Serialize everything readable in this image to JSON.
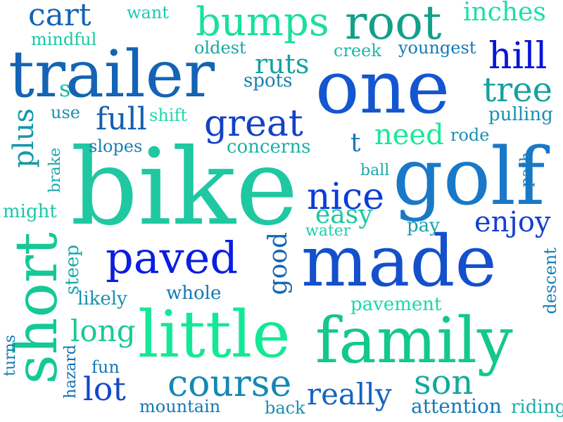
{
  "words": [
    {
      "text": "bike",
      "color": "#1FC8A0"
    },
    {
      "text": "golf",
      "color": "#1A78C8"
    },
    {
      "text": "one",
      "color": "#1456D0"
    },
    {
      "text": "made",
      "color": "#1450CC"
    },
    {
      "text": "trailer",
      "color": "#1463B4"
    },
    {
      "text": "family",
      "color": "#14C88A"
    },
    {
      "text": "little",
      "color": "#14E896"
    },
    {
      "text": "short",
      "color": "#16C896"
    },
    {
      "text": "root",
      "color": "#14A088"
    },
    {
      "text": "bumps",
      "color": "#1AE09A"
    },
    {
      "text": "paved",
      "color": "#0A1EE0"
    },
    {
      "text": "great",
      "color": "#1440C8"
    },
    {
      "text": "nice",
      "color": "#0C3CD8"
    },
    {
      "text": "course",
      "color": "#1488B4"
    },
    {
      "text": "hill",
      "color": "#0A14D8"
    },
    {
      "text": "tree",
      "color": "#16A0A0"
    },
    {
      "text": "cart",
      "color": "#1464B4"
    },
    {
      "text": "full",
      "color": "#1460B0"
    },
    {
      "text": "lot",
      "color": "#1448C8"
    },
    {
      "text": "son",
      "color": "#14A8A0"
    },
    {
      "text": "really",
      "color": "#1464C0"
    },
    {
      "text": "long",
      "color": "#1AC896"
    },
    {
      "text": "need",
      "color": "#1AE89C"
    },
    {
      "text": "easy",
      "color": "#1AC8A0"
    },
    {
      "text": "enjoy",
      "color": "#1440D0"
    },
    {
      "text": "plus",
      "color": "#1498A8"
    },
    {
      "text": "ruts",
      "color": "#18A0A0"
    },
    {
      "text": "inches",
      "color": "#1AE0A8"
    },
    {
      "text": "good",
      "color": "#1468B4"
    },
    {
      "text": "mindful",
      "color": "#18C8A4"
    },
    {
      "text": "want",
      "color": "#20C8B0"
    },
    {
      "text": "oldest",
      "color": "#18A8A0"
    },
    {
      "text": "creek",
      "color": "#1AB8A8"
    },
    {
      "text": "youngest",
      "color": "#1478B8"
    },
    {
      "text": "spots",
      "color": "#1480B0"
    },
    {
      "text": "s",
      "color": "#1AB8A8"
    },
    {
      "text": "use",
      "color": "#1890B0"
    },
    {
      "text": "shift",
      "color": "#20D8A8"
    },
    {
      "text": "pulling",
      "color": "#1890B4"
    },
    {
      "text": "t",
      "color": "#1478B8"
    },
    {
      "text": "rode",
      "color": "#1890B4"
    },
    {
      "text": "slopes",
      "color": "#1480B4"
    },
    {
      "text": "concerns",
      "color": "#1AB0A8"
    },
    {
      "text": "brake",
      "color": "#18A8A8"
    },
    {
      "text": "ball",
      "color": "#18A8A8"
    },
    {
      "text": "path",
      "color": "#1478B8"
    },
    {
      "text": "might",
      "color": "#1AC8A8"
    },
    {
      "text": "water",
      "color": "#1AD0A8"
    },
    {
      "text": "pay",
      "color": "#18A0A8"
    },
    {
      "text": "steep",
      "color": "#18A8A8"
    },
    {
      "text": "likely",
      "color": "#1890B0"
    },
    {
      "text": "whole",
      "color": "#1478B8"
    },
    {
      "text": "pavement",
      "color": "#1AD8A8"
    },
    {
      "text": "descent",
      "color": "#1880B8"
    },
    {
      "text": "turns",
      "color": "#1478B8"
    },
    {
      "text": "hazard",
      "color": "#1470B8"
    },
    {
      "text": "fun",
      "color": "#1478B8"
    },
    {
      "text": "mountain",
      "color": "#1478B8"
    },
    {
      "text": "back",
      "color": "#1890B0"
    },
    {
      "text": "attention",
      "color": "#1478B8"
    },
    {
      "text": "riding",
      "color": "#1AB0A8"
    }
  ]
}
